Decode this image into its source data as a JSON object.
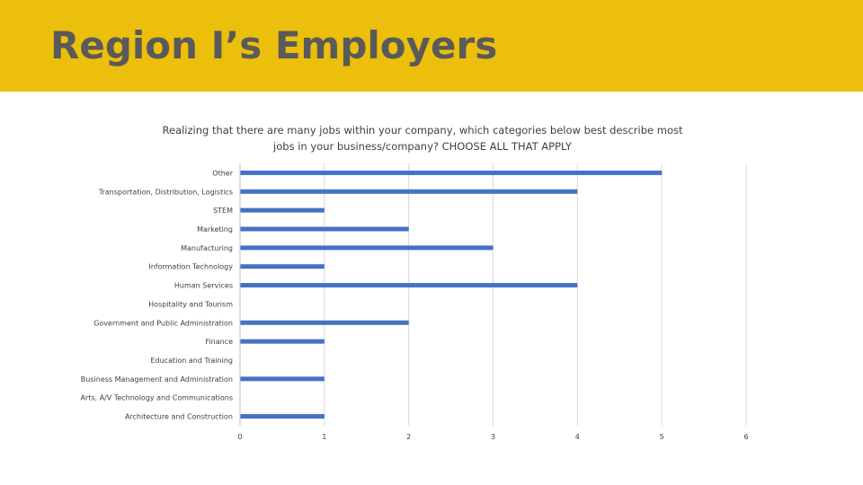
{
  "slide": {
    "title": "Region I’s Employers"
  },
  "chart_data": {
    "type": "bar",
    "orientation": "horizontal",
    "title": "Realizing that there are many jobs within your company, which categories below best describe most jobs in your business/company? CHOOSE ALL THAT APPLY",
    "categories": [
      "Other",
      "Transportation, Distribution, Logistics",
      "STEM",
      "Marketing",
      "Manufacturing",
      "Information Technology",
      "Human Services",
      "Hospitality and Tourism",
      "Government and Public Administration",
      "Finance",
      "Education and Training",
      "Business Management and Administration",
      "Arts, A/V Technology and Communications",
      "Architecture and Construction"
    ],
    "values": [
      5,
      4,
      1,
      2,
      3,
      1,
      4,
      0,
      2,
      1,
      0,
      1,
      0,
      1
    ],
    "xlim": [
      0,
      6
    ],
    "xticks": [
      0,
      1,
      2,
      3,
      4,
      5,
      6
    ],
    "grid": true,
    "bar_color": "#4472C4",
    "gridline_color": "#d9d9d9"
  }
}
